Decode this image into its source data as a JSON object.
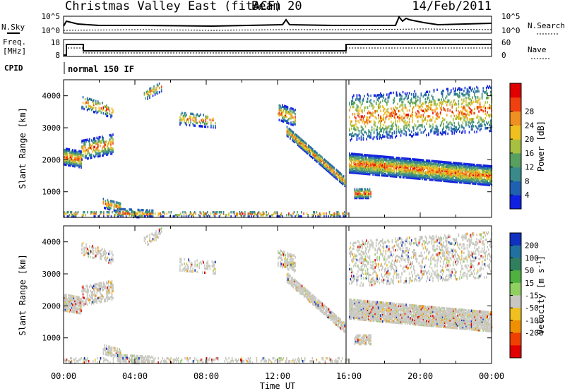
{
  "header": {
    "title": "Christmas Valley East (fitACF)",
    "beam": "Beam 20",
    "date": "14/Feb/2011"
  },
  "top_panels": {
    "nsky_label": "N.Sky",
    "nsearch_label": "N.Search",
    "count_ticks_left": [
      "10^5",
      "10^0"
    ],
    "count_ticks_right": [
      "10^5",
      "10^0"
    ],
    "freq_label_line1": "Freq.",
    "freq_label_line2": "[MHz]",
    "freq_ticks": [
      "18",
      "8"
    ],
    "nave_label": "Nave",
    "nave_ticks": [
      "60",
      "0"
    ],
    "cpid_label": "CPID",
    "cpid_value": "normal 150 IF"
  },
  "chart_data": [
    {
      "type": "heatmap",
      "title": "",
      "xlabel": "",
      "ylabel": "Slant Range [km]",
      "xlim": [
        0,
        24
      ],
      "ylim": [
        200,
        4500
      ],
      "y_ticks": [
        "1000",
        "2000",
        "3000",
        "4000"
      ],
      "colorbar": {
        "label": "Power [dB]",
        "ticks": [
          "4",
          "8",
          "12",
          "16",
          "20",
          "24",
          "28"
        ],
        "colors": [
          "#1020e0",
          "#2060b0",
          "#3a8a8a",
          "#58a060",
          "#a8c040",
          "#f0c020",
          "#f09020",
          "#f04010",
          "#e00000"
        ]
      },
      "x_tick_labels": [
        "00:00",
        "04:00",
        "08:00",
        "12:00",
        "16:00",
        "20:00",
        "00:00"
      ]
    },
    {
      "type": "heatmap",
      "title": "",
      "xlabel": "Time UT",
      "ylabel": "Slant Range [km]",
      "xlim": [
        0,
        24
      ],
      "ylim": [
        200,
        4500
      ],
      "y_ticks": [
        "1000",
        "2000",
        "3000",
        "4000"
      ],
      "colorbar": {
        "label": "Velocity [m s^-1]",
        "ticks": [
          "200",
          "100",
          "50",
          "15",
          "-15",
          "-50",
          "-100",
          "-200"
        ],
        "colors": [
          "#1030c0",
          "#2070a0",
          "#308060",
          "#50b040",
          "#90d060",
          "#c8c8c0",
          "#f0c020",
          "#f09000",
          "#f04000",
          "#e00000"
        ]
      },
      "x_tick_labels": [
        "00:00",
        "04:00",
        "08:00",
        "12:00",
        "16:00",
        "20:00",
        "00:00"
      ]
    }
  ]
}
